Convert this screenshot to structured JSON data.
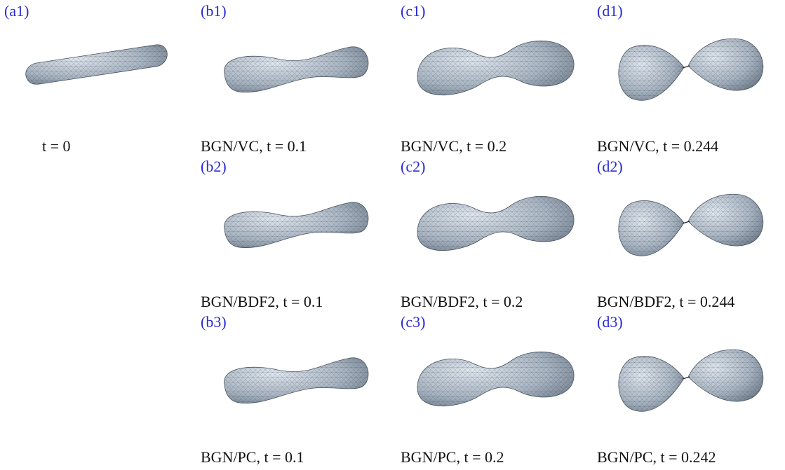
{
  "panels": [
    {
      "label": "(a1)",
      "caption": "t = 0"
    },
    {
      "label": "(b1)",
      "caption": "BGN/VC, t = 0.1"
    },
    {
      "label": "(c1)",
      "caption": "BGN/VC, t = 0.2"
    },
    {
      "label": "(d1)",
      "caption": "BGN/VC, t = 0.244"
    },
    {
      "label": "(b2)",
      "caption": "BGN/BDF2, t = 0.1"
    },
    {
      "label": "(c2)",
      "caption": "BGN/BDF2, t = 0.2"
    },
    {
      "label": "(d2)",
      "caption": "BGN/BDF2, t = 0.244"
    },
    {
      "label": "(b3)",
      "caption": "BGN/PC, t = 0.1"
    },
    {
      "label": "(c3)",
      "caption": "BGN/PC, t = 0.2"
    },
    {
      "label": "(d3)",
      "caption": "BGN/PC, t = 0.242"
    }
  ]
}
